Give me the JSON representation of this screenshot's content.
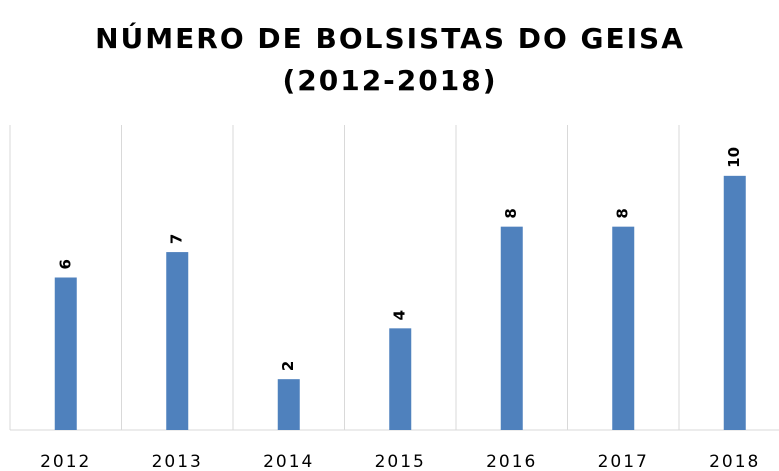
{
  "chart_data": {
    "type": "bar",
    "title": [
      "NÚMERO DE BOLSISTAS DO GEISA",
      "(2012-2018)"
    ],
    "categories": [
      "2012",
      "2013",
      "2014",
      "2015",
      "2016",
      "2017",
      "2018"
    ],
    "values": [
      6,
      7,
      2,
      4,
      8,
      8,
      10
    ],
    "color": "#4f81bd",
    "ylim": [
      0,
      12
    ],
    "data_labels": true
  }
}
